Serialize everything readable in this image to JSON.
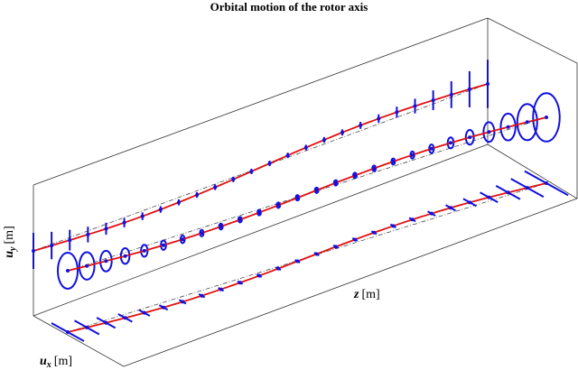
{
  "chart_data": {
    "type": "orbit3d",
    "title": "Orbital motion of the rotor axis",
    "xlabel": {
      "symbol": "u",
      "subscript": "x",
      "unit": "[m]"
    },
    "ylabel": {
      "symbol": "u",
      "subscript": "y",
      "unit": "[m]"
    },
    "zlabel": {
      "symbol": "z",
      "unit": "[m]"
    }
  }
}
